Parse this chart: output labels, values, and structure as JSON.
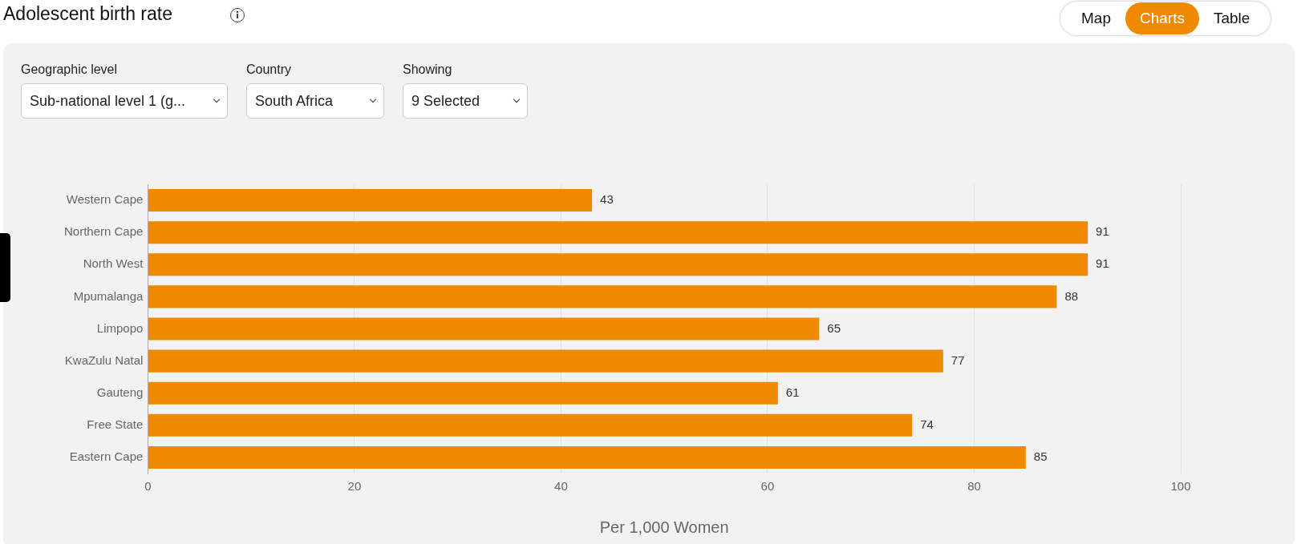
{
  "chart_data": {
    "type": "bar",
    "orientation": "horizontal",
    "title": "Adolescent birth rate",
    "xlabel": "Per 1,000 Women",
    "categories": [
      "Western Cape",
      "Northern Cape",
      "North West",
      "Mpumalanga",
      "Limpopo",
      "KwaZulu Natal",
      "Gauteng",
      "Free State",
      "Eastern Cape"
    ],
    "values": [
      43,
      91,
      91,
      88,
      65,
      77,
      61,
      74,
      85
    ],
    "color": "#ef8a00",
    "xlim": [
      0,
      100
    ],
    "xticks": [
      0,
      20,
      40,
      60,
      80,
      100
    ],
    "grid": "x",
    "data_labels": true,
    "legend": false,
    "annotations": [
      "Map",
      "Charts",
      "Table",
      "Geographic level",
      "Sub-national level 1 (g...",
      "Country",
      "South Africa",
      "Showing",
      "9 Selected"
    ]
  }
}
